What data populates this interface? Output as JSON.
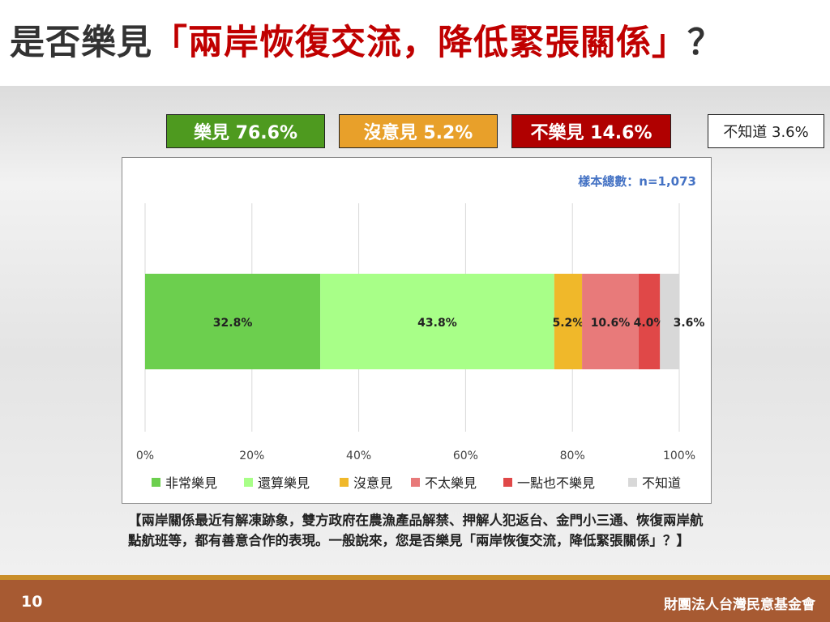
{
  "page": {
    "title_prefix": "是否樂見",
    "title_highlight": "「兩岸恢復交流，降低緊張關係」",
    "title_suffix": "？",
    "page_number": "10",
    "organization": "財團法人台灣民意基金會",
    "question_text": "【兩岸關係最近有解凍跡象，雙方政府在農漁產品解禁、押解人犯返台、金門小三通、恢復兩岸航點航班等，都有善意合作的表現。一般說來，您是否樂見「兩岸恢復交流，降低緊張關係」？】"
  },
  "summary_boxes": [
    {
      "label": "樂見 76.6%",
      "bg": "#4e9a1f",
      "color": "#ffffff"
    },
    {
      "label": "沒意見 5.2%",
      "bg": "#e8a02a",
      "color": "#ffffff"
    },
    {
      "label": "不樂見 14.6%",
      "bg": "#b00000",
      "color": "#ffffff"
    },
    {
      "label": "不知道 3.6%",
      "bg": "#ffffff",
      "color": "#222222"
    }
  ],
  "chart_data": {
    "type": "bar",
    "orientation": "horizontal-stacked",
    "sample_note": "樣本總數：n=1,073",
    "x_ticks": [
      "0%",
      "20%",
      "40%",
      "60%",
      "80%",
      "100%"
    ],
    "xlim": [
      0,
      100
    ],
    "grid": true,
    "legend_position": "bottom",
    "series": [
      {
        "name": "非常樂見",
        "value": 32.8,
        "label": "32.8%",
        "color": "#6ccf4e"
      },
      {
        "name": "還算樂見",
        "value": 43.8,
        "label": "43.8%",
        "color": "#a8ff88"
      },
      {
        "name": "沒意見",
        "value": 5.2,
        "label": "5.2%",
        "color": "#f0b82a"
      },
      {
        "name": "不太樂見",
        "value": 10.6,
        "label": "10.6%",
        "color": "#e87a7a"
      },
      {
        "name": "一點也不樂見",
        "value": 4.0,
        "label": "4.0%",
        "color": "#e04848"
      },
      {
        "name": "不知道",
        "value": 3.6,
        "label": "3.6%",
        "color": "#d8d8d8"
      }
    ]
  }
}
